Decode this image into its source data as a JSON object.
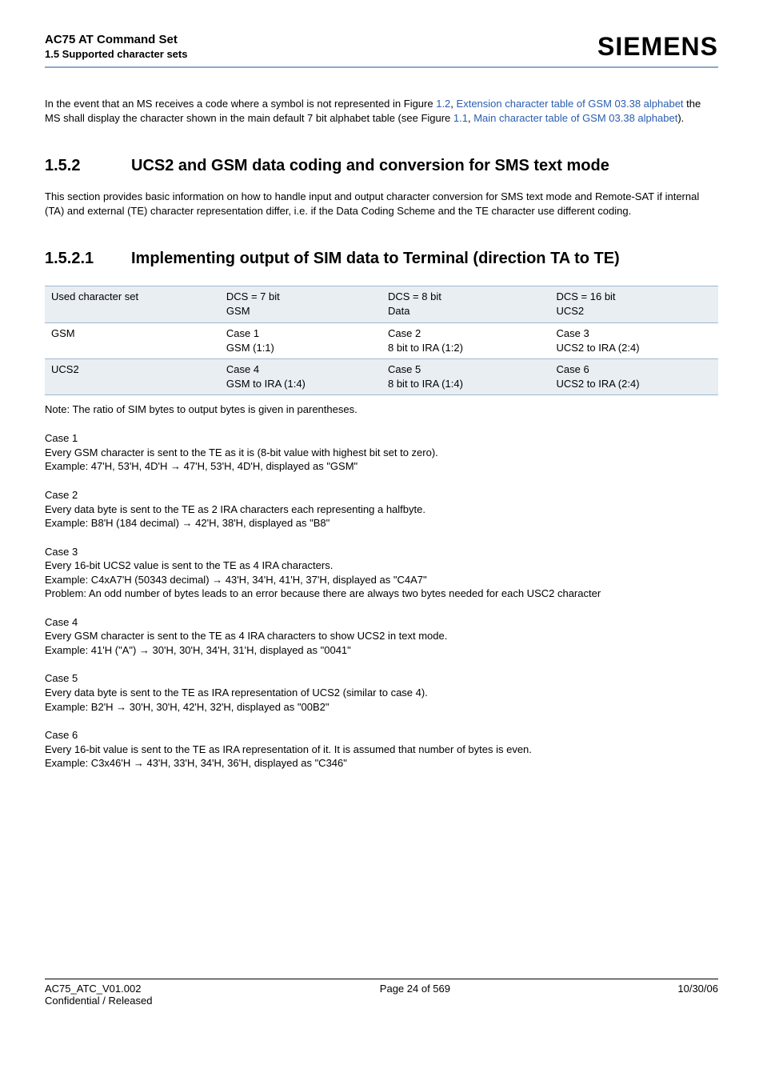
{
  "header": {
    "product_title": "AC75 AT Command Set",
    "section_label": "1.5 Supported character sets",
    "brand": "SIEMENS"
  },
  "intro": {
    "pre": "In the event that an MS receives a code where a symbol is not represented in Figure ",
    "fig_ref1": "1.2",
    "link1_sep": ", ",
    "link1_text": "Extension character table of GSM 03.38 alphabet",
    "mid": "  the MS shall display the character shown in the main default 7 bit alphabet table (see Figure ",
    "fig_ref2": "1.1",
    "link2_sep": ", ",
    "link2_text": "Main character table of GSM 03.38 alphabet",
    "end": ")."
  },
  "sec152": {
    "num": "1.5.2",
    "title": "UCS2 and GSM data coding and conversion for SMS text mode",
    "body": "This section provides basic information on how to handle input and output character conversion for SMS text mode and Remote-SAT if internal (TA) and external (TE) character representation differ, i.e. if the Data Coding Scheme and the TE character use different coding."
  },
  "sec1521": {
    "num": "1.5.2.1",
    "title": "Implementing output of SIM data to Terminal (direction TA to TE)"
  },
  "table": {
    "col_widths": [
      "26%",
      "24%",
      "25%",
      "25%"
    ],
    "styling": {
      "border_color": "#9fb8d0",
      "shaded_bg": "#e9eef3"
    },
    "rows": [
      {
        "shaded": true,
        "cells": [
          {
            "l1": "Used character set",
            "l2": ""
          },
          {
            "l1": "DCS = 7 bit",
            "l2": "GSM"
          },
          {
            "l1": "DCS = 8 bit",
            "l2": "Data"
          },
          {
            "l1": "DCS = 16 bit",
            "l2": "UCS2"
          }
        ]
      },
      {
        "shaded": false,
        "cells": [
          {
            "l1": "GSM",
            "l2": ""
          },
          {
            "l1": "Case 1",
            "l2": "GSM (1:1)"
          },
          {
            "l1": "Case 2",
            "l2": "8 bit to IRA (1:2)"
          },
          {
            "l1": "Case 3",
            "l2": "UCS2 to IRA (2:4)"
          }
        ]
      },
      {
        "shaded": true,
        "cells": [
          {
            "l1": "UCS2",
            "l2": ""
          },
          {
            "l1": "Case 4",
            "l2": "GSM to IRA (1:4)"
          },
          {
            "l1": "Case 5",
            "l2": "8 bit to IRA (1:4)"
          },
          {
            "l1": "Case 6",
            "l2": "UCS2 to IRA (2:4)"
          }
        ]
      }
    ],
    "note": "Note: The ratio of SIM bytes to output bytes is given in parentheses."
  },
  "cases": [
    {
      "title": "Case 1",
      "body": "Every GSM character is sent to the TE as it is (8-bit value with highest bit set to zero).",
      "example": "Example: 47'H, 53'H, 4D'H → 47'H, 53'H, 4D'H, displayed as \"GSM\""
    },
    {
      "title": "Case 2",
      "body": "Every data byte is sent to the TE as 2 IRA characters each representing a halfbyte.",
      "example": "Example: B8'H (184 decimal) → 42'H, 38'H, displayed as \"B8\""
    },
    {
      "title": "Case 3",
      "body": "Every 16-bit UCS2 value is sent to the TE as 4 IRA characters.",
      "example": "Example: C4xA7'H (50343 decimal) → 43'H, 34'H, 41'H, 37'H, displayed as \"C4A7\"",
      "extra": "Problem: An odd number of bytes leads to an error because there are always two bytes needed for each USC2 character"
    },
    {
      "title": "Case 4",
      "body": "Every GSM character is sent to the TE as 4 IRA characters to show UCS2 in text mode.",
      "example": "Example: 41'H (\"A\") → 30'H, 30'H, 34'H, 31'H, displayed as \"0041\""
    },
    {
      "title": "Case 5",
      "body": "Every data byte is sent to the TE as IRA representation of UCS2 (similar to case 4).",
      "example": "Example: B2'H → 30'H, 30'H, 42'H, 32'H, displayed as \"00B2\""
    },
    {
      "title": "Case 6",
      "body": "Every 16-bit value is sent to the TE as IRA representation of it. It is assumed that number of bytes is even.",
      "example": "Example: C3x46'H → 43'H, 33'H, 34'H, 36'H, displayed as \"C346\""
    }
  ],
  "footer": {
    "left_line1": "AC75_ATC_V01.002",
    "left_line2": "Confidential / Released",
    "center": "Page 24 of 569",
    "right": "10/30/06"
  }
}
